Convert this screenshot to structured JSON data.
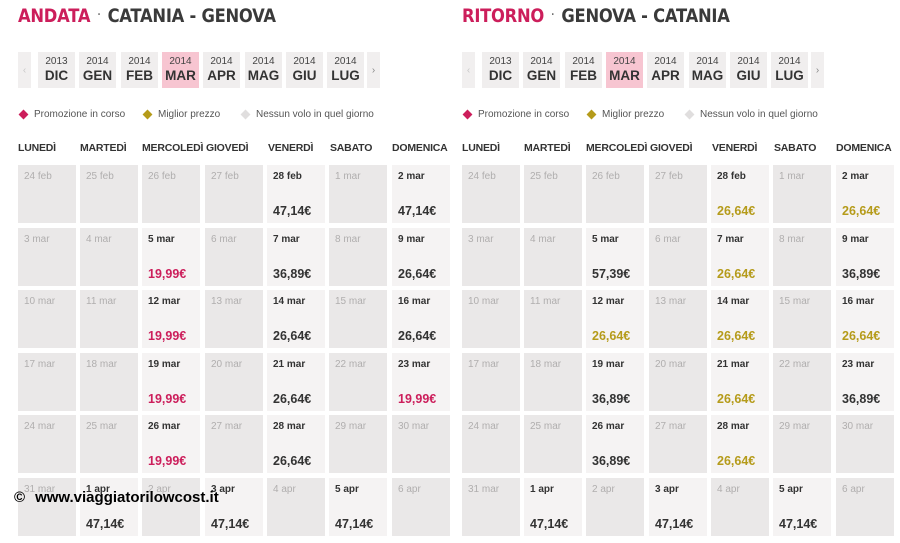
{
  "colors": {
    "promo": "#cc1e5b",
    "best": "#b59b1a",
    "none": "#e0dede",
    "selected_month": "#f7c5d1"
  },
  "panels": [
    {
      "id": "andata",
      "direction": "ANDATA",
      "separator": "·",
      "route": "CATANIA - GENOVA",
      "prev_icon": "‹",
      "next_icon": "›",
      "months": [
        {
          "year": "2013",
          "month": "DIC",
          "selected": false
        },
        {
          "year": "2014",
          "month": "GEN",
          "selected": false
        },
        {
          "year": "2014",
          "month": "FEB",
          "selected": false
        },
        {
          "year": "2014",
          "month": "MAR",
          "selected": true
        },
        {
          "year": "2014",
          "month": "APR",
          "selected": false
        },
        {
          "year": "2014",
          "month": "MAG",
          "selected": false
        },
        {
          "year": "2014",
          "month": "GIU",
          "selected": false
        },
        {
          "year": "2014",
          "month": "LUG",
          "selected": false
        }
      ],
      "legend": [
        {
          "label": "Promozione in corso",
          "icon": "pink-diamond-icon",
          "color": "#cc1e5b"
        },
        {
          "label": "Miglior prezzo",
          "icon": "gold-diamond-icon",
          "color": "#b59b1a"
        },
        {
          "label": "Nessun volo in quel giorno",
          "icon": "gray-diamond-icon",
          "color": "#e0dede"
        }
      ],
      "days": [
        "LUNEDÌ",
        "MARTEDÌ",
        "MERCOLEDÌ",
        "GIOVEDÌ",
        "VENERDÌ",
        "SABATO",
        "DOMENICA"
      ],
      "weeks": [
        [
          {
            "date": "24 feb"
          },
          {
            "date": "25 feb"
          },
          {
            "date": "26 feb"
          },
          {
            "date": "27 feb"
          },
          {
            "date": "28 feb",
            "price": "47,14€",
            "type": "normal"
          },
          {
            "date": "1 mar"
          },
          {
            "date": "2 mar",
            "price": "47,14€",
            "type": "normal"
          }
        ],
        [
          {
            "date": "3 mar"
          },
          {
            "date": "4 mar"
          },
          {
            "date": "5 mar",
            "price": "19,99€",
            "type": "promo"
          },
          {
            "date": "6 mar"
          },
          {
            "date": "7 mar",
            "price": "36,89€",
            "type": "normal"
          },
          {
            "date": "8 mar"
          },
          {
            "date": "9 mar",
            "price": "26,64€",
            "type": "normal"
          }
        ],
        [
          {
            "date": "10 mar"
          },
          {
            "date": "11 mar"
          },
          {
            "date": "12 mar",
            "price": "19,99€",
            "type": "promo"
          },
          {
            "date": "13 mar"
          },
          {
            "date": "14 mar",
            "price": "26,64€",
            "type": "normal"
          },
          {
            "date": "15 mar"
          },
          {
            "date": "16 mar",
            "price": "26,64€",
            "type": "normal"
          }
        ],
        [
          {
            "date": "17 mar"
          },
          {
            "date": "18 mar"
          },
          {
            "date": "19 mar",
            "price": "19,99€",
            "type": "promo"
          },
          {
            "date": "20 mar"
          },
          {
            "date": "21 mar",
            "price": "26,64€",
            "type": "normal"
          },
          {
            "date": "22 mar"
          },
          {
            "date": "23 mar",
            "price": "19,99€",
            "type": "promo"
          }
        ],
        [
          {
            "date": "24 mar"
          },
          {
            "date": "25 mar"
          },
          {
            "date": "26 mar",
            "price": "19,99€",
            "type": "promo"
          },
          {
            "date": "27 mar"
          },
          {
            "date": "28 mar",
            "price": "26,64€",
            "type": "normal"
          },
          {
            "date": "29 mar"
          },
          {
            "date": "30 mar"
          }
        ],
        [
          {
            "date": "31 mar"
          },
          {
            "date": "1 apr",
            "price": "47,14€",
            "type": "normal"
          },
          {
            "date": "2 apr"
          },
          {
            "date": "3 apr",
            "price": "47,14€",
            "type": "normal"
          },
          {
            "date": "4 apr"
          },
          {
            "date": "5 apr",
            "price": "47,14€",
            "type": "normal"
          },
          {
            "date": "6 apr"
          }
        ]
      ]
    },
    {
      "id": "ritorno",
      "direction": "RITORNO",
      "separator": "·",
      "route": "GENOVA - CATANIA",
      "prev_icon": "‹",
      "next_icon": "›",
      "months": [
        {
          "year": "2013",
          "month": "DIC",
          "selected": false
        },
        {
          "year": "2014",
          "month": "GEN",
          "selected": false
        },
        {
          "year": "2014",
          "month": "FEB",
          "selected": false
        },
        {
          "year": "2014",
          "month": "MAR",
          "selected": true
        },
        {
          "year": "2014",
          "month": "APR",
          "selected": false
        },
        {
          "year": "2014",
          "month": "MAG",
          "selected": false
        },
        {
          "year": "2014",
          "month": "GIU",
          "selected": false
        },
        {
          "year": "2014",
          "month": "LUG",
          "selected": false
        }
      ],
      "legend": [
        {
          "label": "Promozione in corso",
          "icon": "pink-diamond-icon",
          "color": "#cc1e5b"
        },
        {
          "label": "Miglior prezzo",
          "icon": "gold-diamond-icon",
          "color": "#b59b1a"
        },
        {
          "label": "Nessun volo in quel giorno",
          "icon": "gray-diamond-icon",
          "color": "#e0dede"
        }
      ],
      "days": [
        "LUNEDÌ",
        "MARTEDÌ",
        "MERCOLEDÌ",
        "GIOVEDÌ",
        "VENERDÌ",
        "SABATO",
        "DOMENICA"
      ],
      "weeks": [
        [
          {
            "date": "24 feb"
          },
          {
            "date": "25 feb"
          },
          {
            "date": "26 feb"
          },
          {
            "date": "27 feb"
          },
          {
            "date": "28 feb",
            "price": "26,64€",
            "type": "best"
          },
          {
            "date": "1 mar"
          },
          {
            "date": "2 mar",
            "price": "26,64€",
            "type": "best"
          }
        ],
        [
          {
            "date": "3 mar"
          },
          {
            "date": "4 mar"
          },
          {
            "date": "5 mar",
            "price": "57,39€",
            "type": "normal"
          },
          {
            "date": "6 mar"
          },
          {
            "date": "7 mar",
            "price": "26,64€",
            "type": "best"
          },
          {
            "date": "8 mar"
          },
          {
            "date": "9 mar",
            "price": "36,89€",
            "type": "normal"
          }
        ],
        [
          {
            "date": "10 mar"
          },
          {
            "date": "11 mar"
          },
          {
            "date": "12 mar",
            "price": "26,64€",
            "type": "best"
          },
          {
            "date": "13 mar"
          },
          {
            "date": "14 mar",
            "price": "26,64€",
            "type": "best"
          },
          {
            "date": "15 mar"
          },
          {
            "date": "16 mar",
            "price": "26,64€",
            "type": "best"
          }
        ],
        [
          {
            "date": "17 mar"
          },
          {
            "date": "18 mar"
          },
          {
            "date": "19 mar",
            "price": "36,89€",
            "type": "normal"
          },
          {
            "date": "20 mar"
          },
          {
            "date": "21 mar",
            "price": "26,64€",
            "type": "best"
          },
          {
            "date": "22 mar"
          },
          {
            "date": "23 mar",
            "price": "36,89€",
            "type": "normal"
          }
        ],
        [
          {
            "date": "24 mar"
          },
          {
            "date": "25 mar"
          },
          {
            "date": "26 mar",
            "price": "36,89€",
            "type": "normal"
          },
          {
            "date": "27 mar"
          },
          {
            "date": "28 mar",
            "price": "26,64€",
            "type": "best"
          },
          {
            "date": "29 mar"
          },
          {
            "date": "30 mar"
          }
        ],
        [
          {
            "date": "31 mar"
          },
          {
            "date": "1 apr",
            "price": "47,14€",
            "type": "normal"
          },
          {
            "date": "2 apr"
          },
          {
            "date": "3 apr",
            "price": "47,14€",
            "type": "normal"
          },
          {
            "date": "4 apr"
          },
          {
            "date": "5 apr",
            "price": "47,14€",
            "type": "normal"
          },
          {
            "date": "6 apr"
          }
        ]
      ]
    }
  ],
  "watermark": {
    "symbol": "©",
    "text": "www.viaggiatorilowcost.it"
  }
}
